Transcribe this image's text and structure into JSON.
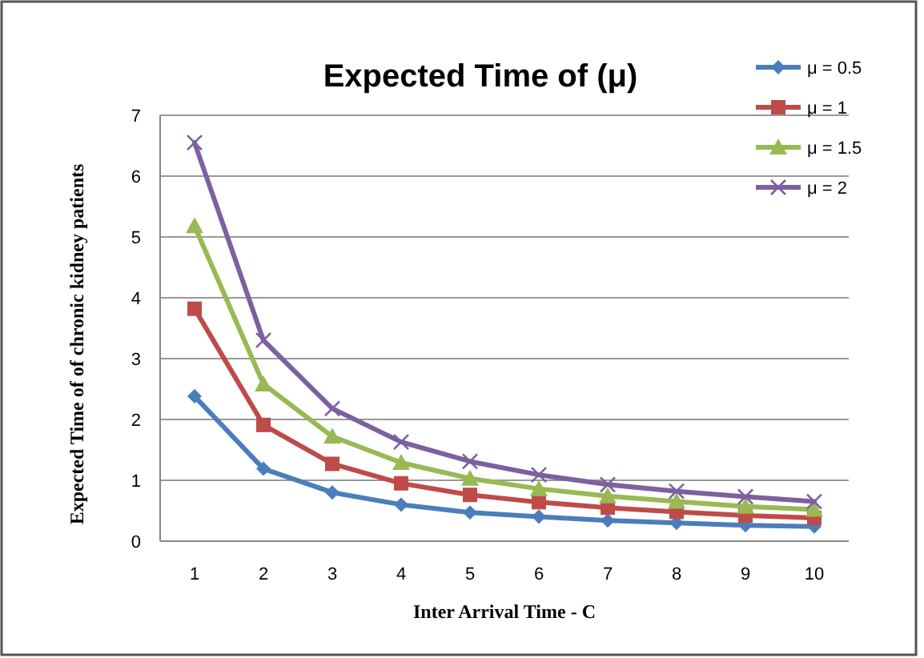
{
  "chart_data": {
    "type": "line",
    "title": "Expected Time of (μ)",
    "xlabel": "Inter Arrival Time - C",
    "ylabel": "Expected  Time of of chronic kidney  patients",
    "categories": [
      "1",
      "2",
      "3",
      "4",
      "5",
      "6",
      "7",
      "8",
      "9",
      "10"
    ],
    "series": [
      {
        "name": "μ = 0.5",
        "color": "#4a7ebb",
        "marker": "diamond",
        "values": [
          2.38,
          1.19,
          0.8,
          0.6,
          0.47,
          0.4,
          0.34,
          0.3,
          0.26,
          0.24
        ]
      },
      {
        "name": "μ = 1",
        "color": "#be4b48",
        "marker": "square",
        "values": [
          3.82,
          1.91,
          1.27,
          0.95,
          0.76,
          0.64,
          0.55,
          0.48,
          0.42,
          0.38
        ]
      },
      {
        "name": "μ = 1.5",
        "color": "#98b954",
        "marker": "triangle",
        "values": [
          5.18,
          2.58,
          1.72,
          1.29,
          1.03,
          0.86,
          0.74,
          0.65,
          0.57,
          0.52
        ]
      },
      {
        "name": "μ = 2",
        "color": "#7d60a0",
        "marker": "cross",
        "values": [
          6.55,
          3.3,
          2.18,
          1.63,
          1.31,
          1.09,
          0.93,
          0.82,
          0.73,
          0.65
        ]
      }
    ],
    "ylim": [
      0,
      7
    ],
    "yticks": [
      0,
      1,
      2,
      3,
      4,
      5,
      6,
      7
    ],
    "grid": "y",
    "legend": "top right"
  }
}
